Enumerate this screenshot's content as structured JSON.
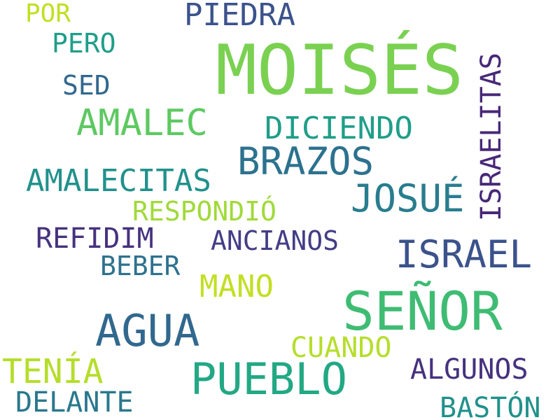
{
  "words": [
    {
      "text": "MOISÉS",
      "color": "#7ad151"
    },
    {
      "text": "SEÑOR",
      "color": "#3fbc73"
    },
    {
      "text": "PUEBLO",
      "color": "#22a884"
    },
    {
      "text": "AGUA",
      "color": "#31688e"
    },
    {
      "text": "ISRAEL",
      "color": "#3b528b"
    },
    {
      "text": "BRAZOS",
      "color": "#2c728e"
    },
    {
      "text": "JOSUÉ",
      "color": "#287d8e"
    },
    {
      "text": "AMALEC",
      "color": "#5ec962"
    },
    {
      "text": "ISRAELITAS",
      "color": "#482878"
    },
    {
      "text": "AMALECITAS",
      "color": "#21918c"
    },
    {
      "text": "PIEDRA",
      "color": "#3b528b"
    },
    {
      "text": "DICIENDO",
      "color": "#1f9e89"
    },
    {
      "text": "MANO",
      "color": "#c2df23"
    },
    {
      "text": "TENÍA",
      "color": "#b5de2b"
    },
    {
      "text": "ALGUNOS",
      "color": "#46327e"
    },
    {
      "text": "CUANDO",
      "color": "#b5de2b"
    },
    {
      "text": "BASTÓN",
      "color": "#21918c"
    },
    {
      "text": "REFIDIM",
      "color": "#46327e"
    },
    {
      "text": "ANCIANOS",
      "color": "#433e85"
    },
    {
      "text": "DELANTE",
      "color": "#2a788e"
    },
    {
      "text": "RESPONDIÓ",
      "color": "#a0da39"
    },
    {
      "text": "BEBER",
      "color": "#2c728e"
    },
    {
      "text": "PERO",
      "color": "#1f9e89"
    },
    {
      "text": "SED",
      "color": "#31688e"
    },
    {
      "text": "POR",
      "color": "#c2df23"
    }
  ]
}
